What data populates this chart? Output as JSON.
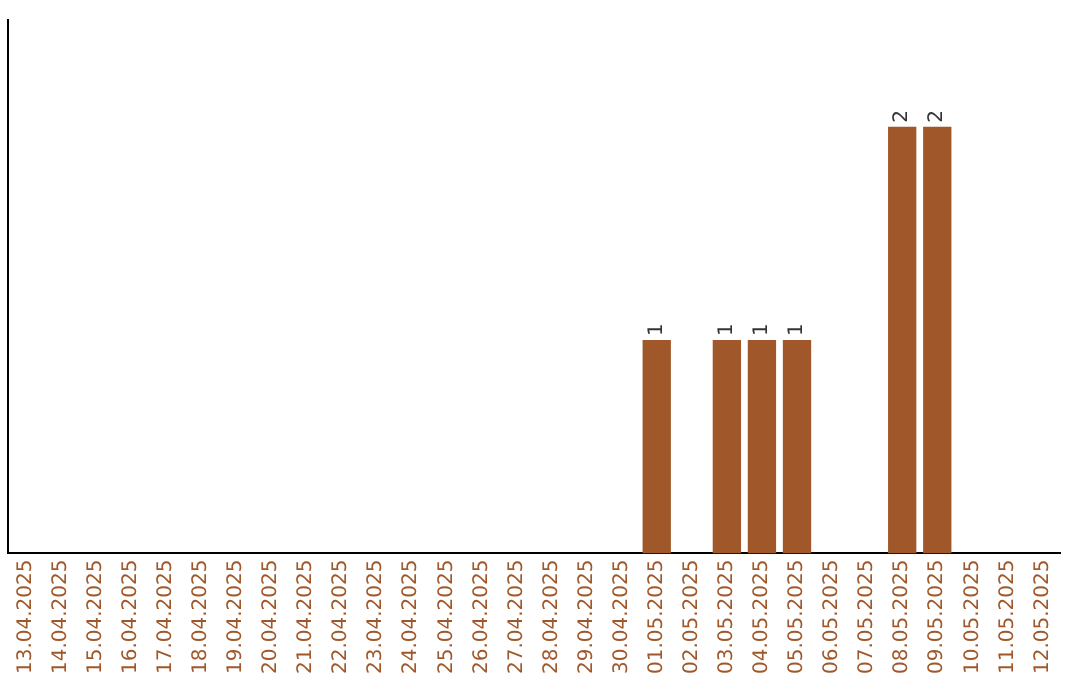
{
  "chart_data": {
    "type": "bar",
    "categories": [
      "13.04.2025",
      "14.04.2025",
      "15.04.2025",
      "16.04.2025",
      "17.04.2025",
      "18.04.2025",
      "19.04.2025",
      "20.04.2025",
      "21.04.2025",
      "22.04.2025",
      "23.04.2025",
      "24.04.2025",
      "25.04.2025",
      "26.04.2025",
      "27.04.2025",
      "28.04.2025",
      "29.04.2025",
      "30.04.2025",
      "01.05.2025",
      "02.05.2025",
      "03.05.2025",
      "04.05.2025",
      "05.05.2025",
      "06.05.2025",
      "07.05.2025",
      "08.05.2025",
      "09.05.2025",
      "10.05.2025",
      "11.05.2025",
      "12.05.2025"
    ],
    "values": [
      null,
      null,
      null,
      null,
      null,
      null,
      null,
      null,
      null,
      null,
      null,
      null,
      null,
      null,
      null,
      null,
      null,
      null,
      1,
      null,
      1,
      1,
      1,
      null,
      null,
      2,
      2,
      null,
      null,
      null
    ],
    "value_labels": [
      null,
      null,
      null,
      null,
      null,
      null,
      null,
      null,
      null,
      null,
      null,
      null,
      null,
      null,
      null,
      null,
      null,
      null,
      "1",
      null,
      "1",
      "1",
      "1",
      null,
      null,
      "2",
      "2",
      null,
      null,
      null
    ],
    "color": "#a0582a",
    "grid": false,
    "legend": false,
    "tick_labels": "x"
  }
}
